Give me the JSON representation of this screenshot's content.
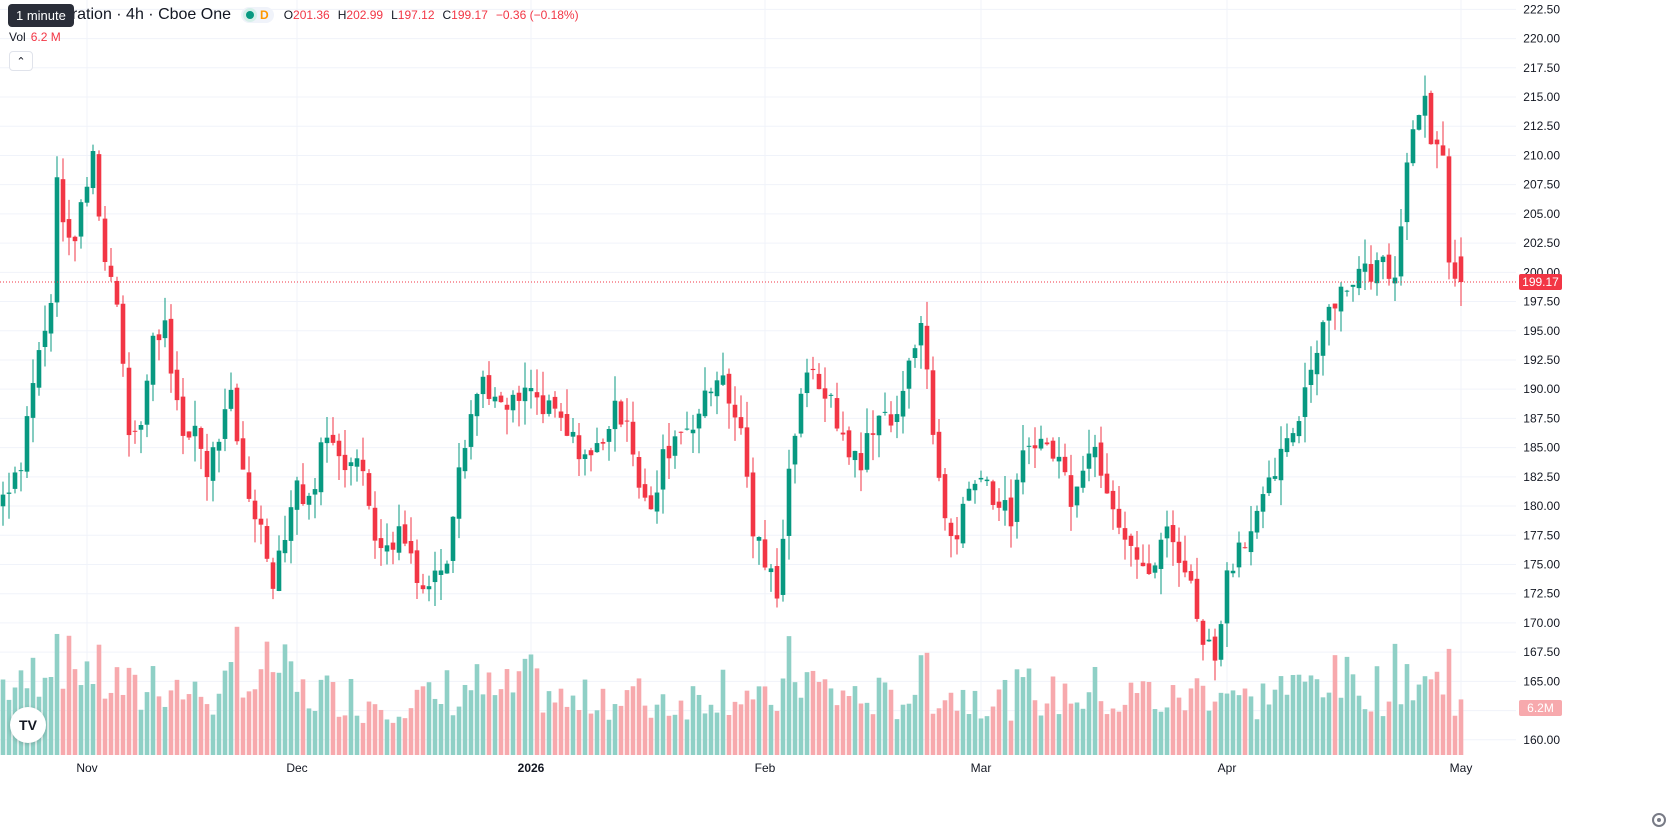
{
  "legend": {
    "symbol": "A Corporation · 4h · Cboe One",
    "tooltip": "1 minute",
    "badge_d": "D",
    "o_label": "O",
    "o_value": "201.36",
    "h_label": "H",
    "h_value": "202.99",
    "l_label": "L",
    "l_value": "197.12",
    "c_label": "C",
    "c_value": "199.17",
    "change": "−0.36 (−0.18%)",
    "vol_label": "Vol",
    "vol_value": "6.2 M",
    "collapse_icon": "chevron-up-icon",
    "logo": "tradingview-logo"
  },
  "colors": {
    "up": "#089981",
    "down": "#f23645",
    "up_volume": "#8fd0c6",
    "down_volume": "#f7a9ad",
    "grid": "#f0f3fa",
    "price_line": "#f23645"
  },
  "chart_data": {
    "type": "candlestick",
    "interval": "4h",
    "last_price": "199.17",
    "last_volume": "6.2M",
    "ylim": [
      158.7,
      223.3
    ],
    "y_ticks": [
      "160.00",
      "162.50",
      "165.00",
      "167.50",
      "170.00",
      "172.50",
      "175.00",
      "177.50",
      "180.00",
      "182.50",
      "185.00",
      "187.50",
      "190.00",
      "192.50",
      "195.00",
      "197.50",
      "200.00",
      "202.50",
      "205.00",
      "207.50",
      "210.00",
      "212.50",
      "215.00",
      "217.50",
      "220.00",
      "222.50"
    ],
    "x_ticks": [
      {
        "label": "Nov",
        "index": 14
      },
      {
        "label": "Dec",
        "index": 49
      },
      {
        "label": "2026",
        "index": 88
      },
      {
        "label": "Feb",
        "index": 127
      },
      {
        "label": "Mar",
        "index": 163
      },
      {
        "label": "Apr",
        "index": 204
      },
      {
        "label": "May",
        "index": 243
      }
    ],
    "anchors": [
      [
        0,
        181,
        1000
      ],
      [
        3,
        184,
        900
      ],
      [
        5,
        191,
        1100
      ],
      [
        8,
        197,
        1500
      ],
      [
        9,
        208,
        1700
      ],
      [
        11,
        202,
        1200
      ],
      [
        13,
        205,
        1300
      ],
      [
        15,
        210,
        1200
      ],
      [
        17,
        201,
        1000
      ],
      [
        19,
        198,
        1000
      ],
      [
        21,
        187,
        900
      ],
      [
        23,
        187,
        800
      ],
      [
        25,
        194,
        1100
      ],
      [
        27,
        196,
        1000
      ],
      [
        30,
        185,
        900
      ],
      [
        32,
        187,
        800
      ],
      [
        34,
        183,
        900
      ],
      [
        36,
        186,
        700
      ],
      [
        38,
        189,
        1000
      ],
      [
        39,
        185,
        1600
      ],
      [
        41,
        181,
        1000
      ],
      [
        43,
        178,
        1000
      ],
      [
        45,
        174,
        1300
      ],
      [
        47,
        178,
        1100
      ],
      [
        49,
        182,
        900
      ],
      [
        51,
        180,
        800
      ],
      [
        53,
        185,
        900
      ],
      [
        55,
        186,
        800
      ],
      [
        57,
        184,
        900
      ],
      [
        60,
        183,
        700
      ],
      [
        62,
        178,
        800
      ],
      [
        64,
        176,
        700
      ],
      [
        66,
        178,
        800
      ],
      [
        68,
        176,
        700
      ],
      [
        70,
        173,
        800
      ],
      [
        72,
        174,
        700
      ],
      [
        74,
        176,
        900
      ],
      [
        76,
        184,
        800
      ],
      [
        78,
        188,
        1000
      ],
      [
        80,
        191,
        900
      ],
      [
        83,
        188,
        800
      ],
      [
        86,
        189,
        1000
      ],
      [
        88,
        190,
        1000
      ],
      [
        90,
        188,
        900
      ],
      [
        92,
        188,
        800
      ],
      [
        94,
        186,
        700
      ],
      [
        96,
        185,
        700
      ],
      [
        98,
        184,
        800
      ],
      [
        100,
        186,
        900
      ],
      [
        102,
        188,
        700
      ],
      [
        104,
        188,
        800
      ],
      [
        106,
        182,
        800
      ],
      [
        108,
        179,
        700
      ],
      [
        110,
        184,
        800
      ],
      [
        112,
        186,
        700
      ],
      [
        114,
        187,
        800
      ],
      [
        116,
        188,
        800
      ],
      [
        118,
        190,
        900
      ],
      [
        120,
        192,
        1000
      ],
      [
        121,
        188,
        900
      ],
      [
        123,
        187,
        900
      ],
      [
        124,
        182,
        900
      ],
      [
        125,
        178,
        700
      ],
      [
        127,
        175,
        700
      ],
      [
        129,
        173,
        800
      ],
      [
        130,
        178,
        900
      ],
      [
        131,
        183,
        1200
      ],
      [
        133,
        190,
        1100
      ],
      [
        135,
        191,
        1000
      ],
      [
        137,
        190,
        900
      ],
      [
        139,
        187,
        800
      ],
      [
        141,
        185,
        900
      ],
      [
        143,
        183,
        700
      ],
      [
        144,
        186,
        800
      ],
      [
        146,
        188,
        800
      ],
      [
        148,
        187,
        700
      ],
      [
        150,
        189,
        800
      ],
      [
        151,
        193,
        900
      ],
      [
        153,
        196,
        1000
      ],
      [
        154,
        191,
        1300
      ],
      [
        155,
        186,
        900
      ],
      [
        157,
        179,
        900
      ],
      [
        159,
        177,
        800
      ],
      [
        160,
        180,
        800
      ],
      [
        162,
        183,
        900
      ],
      [
        164,
        182,
        800
      ],
      [
        166,
        180,
        800
      ],
      [
        168,
        179,
        800
      ],
      [
        170,
        184,
        900
      ],
      [
        172,
        186,
        900
      ],
      [
        174,
        185,
        800
      ],
      [
        176,
        184,
        800
      ],
      [
        178,
        181,
        900
      ],
      [
        180,
        184,
        800
      ],
      [
        182,
        185,
        900
      ],
      [
        184,
        182,
        800
      ],
      [
        186,
        179,
        700
      ],
      [
        188,
        177,
        800
      ],
      [
        190,
        174,
        900
      ],
      [
        192,
        175,
        800
      ],
      [
        194,
        178,
        700
      ],
      [
        196,
        176,
        800
      ],
      [
        198,
        173,
        800
      ],
      [
        200,
        169,
        1000
      ],
      [
        202,
        167,
        900
      ],
      [
        203,
        171,
        900
      ],
      [
        204,
        174,
        1000
      ],
      [
        206,
        177,
        800
      ],
      [
        208,
        178,
        700
      ],
      [
        210,
        180,
        800
      ],
      [
        212,
        183,
        1000
      ],
      [
        214,
        185,
        900
      ],
      [
        216,
        188,
        900
      ],
      [
        218,
        192,
        1000
      ],
      [
        220,
        196,
        1200
      ],
      [
        222,
        198,
        1000
      ],
      [
        224,
        199,
        1000
      ],
      [
        226,
        200,
        900
      ],
      [
        228,
        200,
        1000
      ],
      [
        230,
        201,
        900
      ],
      [
        232,
        200,
        1100
      ],
      [
        234,
        210,
        1200
      ],
      [
        236,
        214,
        1000
      ],
      [
        237,
        216,
        1100
      ],
      [
        238,
        212,
        1000
      ],
      [
        240,
        209,
        1000
      ],
      [
        241,
        200,
        1300
      ],
      [
        242,
        199,
        900
      ],
      [
        243,
        199,
        900
      ]
    ],
    "ohlc_last": {
      "open": 201.36,
      "high": 202.99,
      "low": 197.12,
      "close": 199.17
    }
  }
}
